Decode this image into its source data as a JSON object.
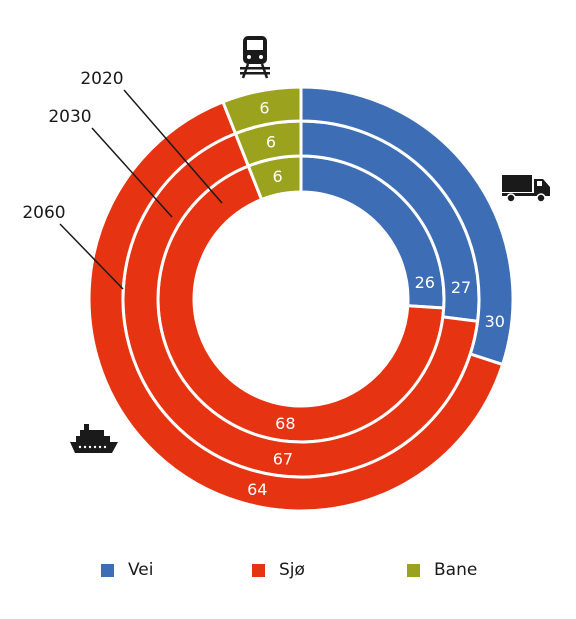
{
  "chart_data": {
    "type": "donut",
    "categories": [
      "Vei",
      "Sjø",
      "Bane"
    ],
    "colors": {
      "Vei": "#3d6db5",
      "Sjø": "#e63312",
      "Bane": "#9aa21e"
    },
    "series": [
      {
        "name": "2020",
        "values": [
          26,
          68,
          6
        ]
      },
      {
        "name": "2030",
        "values": [
          27,
          67,
          6
        ]
      },
      {
        "name": "2060",
        "values": [
          30,
          64,
          6
        ]
      }
    ],
    "icons": {
      "Vei": "truck-icon",
      "Sjø": "ship-icon",
      "Bane": "train-icon"
    },
    "legend": {
      "placement": "bottom"
    }
  }
}
